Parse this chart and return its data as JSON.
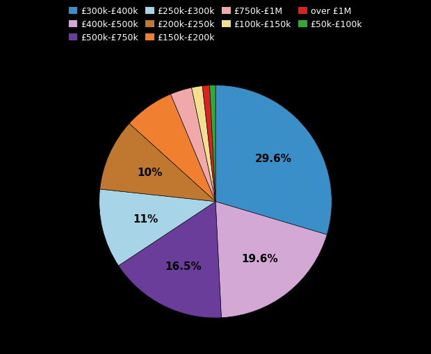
{
  "labels": [
    "£300k-£400k",
    "£400k-£500k",
    "£500k-£750k",
    "£250k-£300k",
    "£200k-£250k",
    "£150k-£200k",
    "£750k-£1M",
    "£100k-£150k",
    "over £1M",
    "£50k-£100k"
  ],
  "values": [
    29.6,
    19.6,
    16.5,
    11.0,
    10.0,
    7.0,
    3.0,
    1.5,
    1.0,
    0.8
  ],
  "colors": [
    "#3a8fc8",
    "#d4a8d4",
    "#6a3d9b",
    "#a8d4e8",
    "#c07830",
    "#f08030",
    "#f0a8a8",
    "#f0e090",
    "#dd2020",
    "#30aa30"
  ],
  "background_color": "#000000",
  "text_color": "#000000",
  "legend_text_color": "#ffffff",
  "startangle": 90,
  "figsize": [
    6.2,
    5.1
  ],
  "dpi": 100,
  "legend_ncol": 4,
  "legend_rows": [
    [
      "£300k-£400k",
      "£400k-£500k",
      "£500k-£750k",
      "£250k-£300k"
    ],
    [
      "£200k-£250k",
      "£150k-£200k",
      "£750k-£1M",
      "£100k-£150k",
      "over £1M"
    ],
    [
      "£50k-£100k"
    ]
  ],
  "autopct_map": {
    "£300k-£400k": "29.6%",
    "£400k-£500k": "19.6%",
    "£500k-£750k": "16.5%",
    "£250k-£300k": "11%",
    "£200k-£250k": "10%"
  }
}
